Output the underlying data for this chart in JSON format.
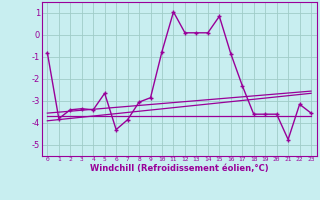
{
  "xlabel": "Windchill (Refroidissement éolien,°C)",
  "xlim": [
    -0.5,
    23.5
  ],
  "ylim": [
    -5.5,
    1.5
  ],
  "yticks": [
    -5,
    -4,
    -3,
    -2,
    -1,
    0,
    1
  ],
  "xticks": [
    0,
    1,
    2,
    3,
    4,
    5,
    6,
    7,
    8,
    9,
    10,
    11,
    12,
    13,
    14,
    15,
    16,
    17,
    18,
    19,
    20,
    21,
    22,
    23
  ],
  "background_color": "#c8eef0",
  "grid_color": "#a0ccc8",
  "line_color": "#990099",
  "main_line": {
    "x": [
      0,
      1,
      2,
      3,
      4,
      5,
      6,
      7,
      8,
      9,
      10,
      11,
      12,
      13,
      14,
      15,
      16,
      17,
      18,
      19,
      20,
      21,
      22,
      23
    ],
    "y": [
      -0.8,
      -3.8,
      -3.4,
      -3.35,
      -3.4,
      -2.65,
      -4.3,
      -3.85,
      -3.05,
      -2.85,
      -0.75,
      1.05,
      0.1,
      0.1,
      0.1,
      0.85,
      -0.85,
      -2.3,
      -3.6,
      -3.6,
      -3.6,
      -4.75,
      -3.15,
      -3.55
    ]
  },
  "trend_line1": {
    "x": [
      0,
      23
    ],
    "y": [
      -3.55,
      -2.55
    ]
  },
  "trend_line2": {
    "x": [
      0,
      23
    ],
    "y": [
      -3.7,
      -3.7
    ]
  },
  "trend_line3": {
    "x": [
      0,
      23
    ],
    "y": [
      -3.9,
      -2.65
    ]
  }
}
